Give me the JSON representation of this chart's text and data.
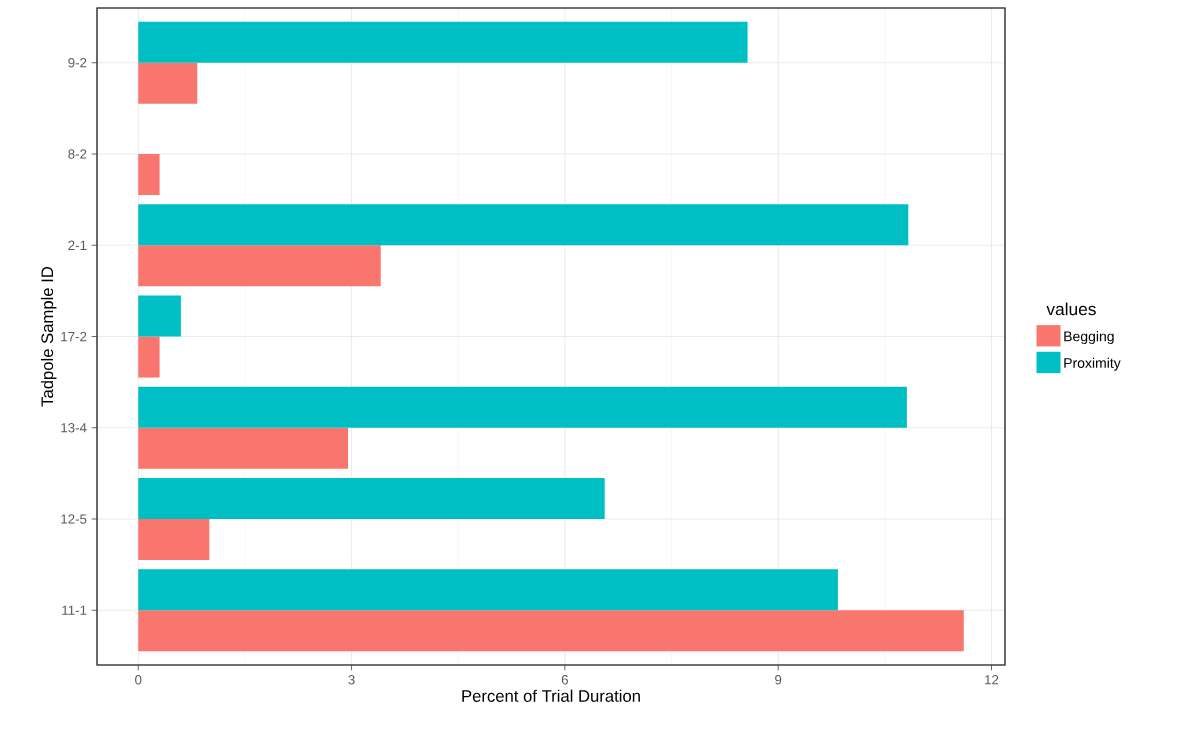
{
  "chart_data": {
    "type": "bar",
    "orientation": "horizontal",
    "xlabel": "Percent of Trial Duration",
    "ylabel": "Tadpole Sample ID",
    "legend_title": "values",
    "categories": [
      "9-2",
      "8-2",
      "2-1",
      "17-2",
      "13-4",
      "12-5",
      "11-1"
    ],
    "series": [
      {
        "name": "Begging",
        "color": "#f8766d",
        "values": [
          0.83,
          0.3,
          3.41,
          0.3,
          2.95,
          1.0,
          11.61
        ]
      },
      {
        "name": "Proximity",
        "color": "#00bfc4",
        "values": [
          8.57,
          null,
          10.83,
          0.6,
          10.81,
          6.56,
          9.84
        ]
      }
    ],
    "xlim": [
      -0.58,
      12.19
    ],
    "xticks": [
      0,
      3,
      6,
      9,
      12
    ],
    "grid": true,
    "legend": "right"
  }
}
